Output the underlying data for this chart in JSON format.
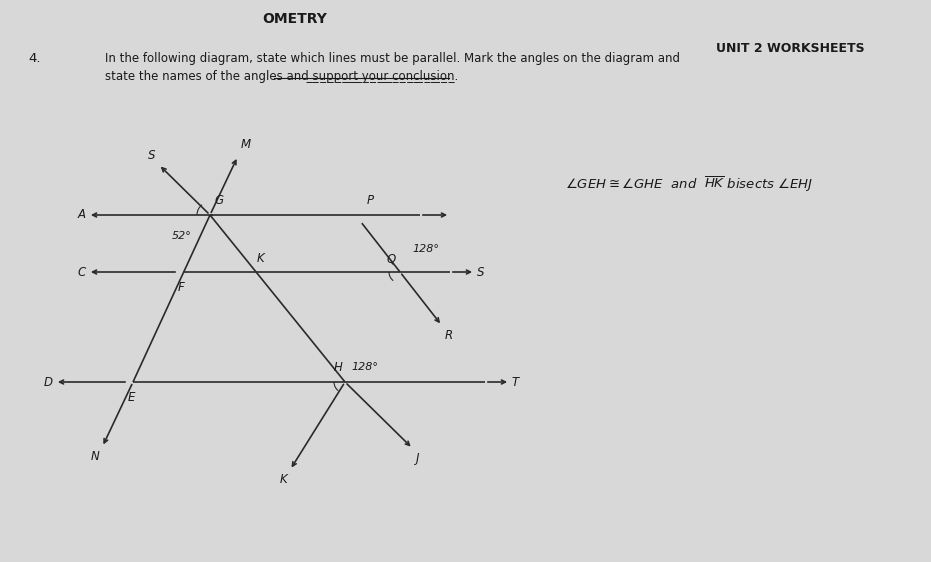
{
  "bg_color": "#d8d8d8",
  "paper_color": "#e8e8e4",
  "title_top": "OMETRY",
  "title_right": "UNIT 2 WORKSHEETS",
  "question_num": "4.",
  "question_text1": "In the following diagram, state which lines must be parallel. Mark the angles on the diagram and",
  "question_text2": "state the names of the angles and ̲s̲u̲p̲p̲o̲r̲t̲ ̲y̲o̲u̲r̲ ̲c̲o̲n̲c̲l̲u̲s̲i̲o̲n̲.",
  "condition_line1": "∠GEH ≅ ∠GHE  and  HK bisects ∠EHJ",
  "angle_52": "52°",
  "angle_128_q": "128°",
  "angle_128_h": "128°",
  "line_color": "#2a2a2a",
  "text_color": "#1a1a1a"
}
